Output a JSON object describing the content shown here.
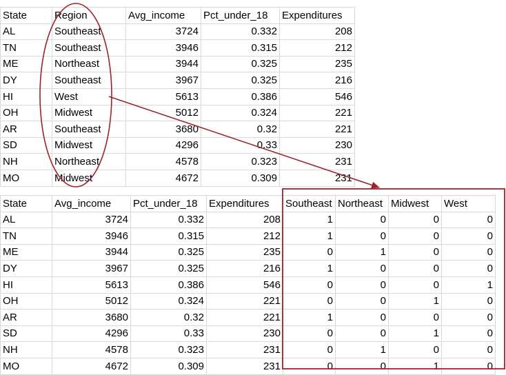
{
  "original_table": {
    "headers": [
      "State",
      "Region",
      "Avg_income",
      "Pct_under_18",
      "Expenditures"
    ],
    "rows": [
      [
        "AL",
        "Southeast",
        "3724",
        "0.332",
        "208"
      ],
      [
        "TN",
        "Southeast",
        "3946",
        "0.315",
        "212"
      ],
      [
        "ME",
        "Northeast",
        "3944",
        "0.325",
        "235"
      ],
      [
        "DY",
        "Southeast",
        "3967",
        "0.325",
        "216"
      ],
      [
        "HI",
        "West",
        "5613",
        "0.386",
        "546"
      ],
      [
        "OH",
        "Midwest",
        "5012",
        "0.324",
        "221"
      ],
      [
        "AR",
        "Southeast",
        "3680",
        "0.32",
        "221"
      ],
      [
        "SD",
        "Midwest",
        "4296",
        "0.33",
        "230"
      ],
      [
        "NH",
        "Northeast",
        "4578",
        "0.323",
        "231"
      ],
      [
        "MO",
        "Midwest",
        "4672",
        "0.309",
        "231"
      ]
    ]
  },
  "encoded_table": {
    "headers": [
      "State",
      "Avg_income",
      "Pct_under_18",
      "Expenditures",
      "Southeast",
      "Northeast",
      "Midwest",
      "West"
    ],
    "rows": [
      [
        "AL",
        "3724",
        "0.332",
        "208",
        "1",
        "0",
        "0",
        "0"
      ],
      [
        "TN",
        "3946",
        "0.315",
        "212",
        "1",
        "0",
        "0",
        "0"
      ],
      [
        "ME",
        "3944",
        "0.325",
        "235",
        "0",
        "1",
        "0",
        "0"
      ],
      [
        "DY",
        "3967",
        "0.325",
        "216",
        "1",
        "0",
        "0",
        "0"
      ],
      [
        "HI",
        "5613",
        "0.386",
        "546",
        "0",
        "0",
        "0",
        "1"
      ],
      [
        "OH",
        "5012",
        "0.324",
        "221",
        "0",
        "0",
        "1",
        "0"
      ],
      [
        "AR",
        "3680",
        "0.32",
        "221",
        "1",
        "0",
        "0",
        "0"
      ],
      [
        "SD",
        "4296",
        "0.33",
        "230",
        "0",
        "0",
        "1",
        "0"
      ],
      [
        "NH",
        "4578",
        "0.323",
        "231",
        "0",
        "1",
        "0",
        "0"
      ],
      [
        "MO",
        "4672",
        "0.309",
        "231",
        "0",
        "0",
        "1",
        "0"
      ]
    ]
  },
  "colors": {
    "annotation": "#a0202a",
    "gridline": "#d9d9d9"
  }
}
